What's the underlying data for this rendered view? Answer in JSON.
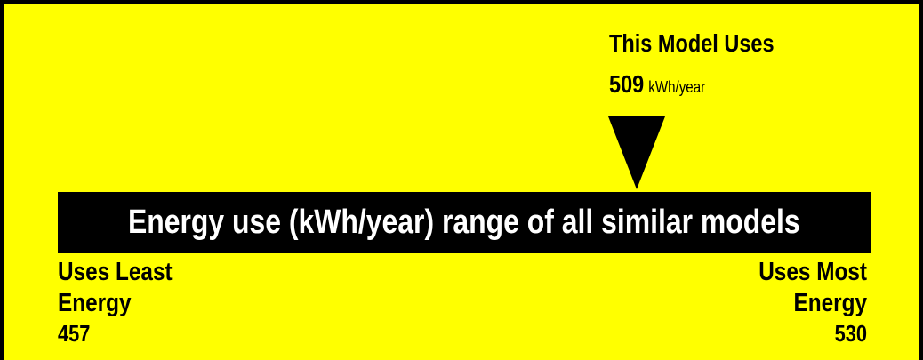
{
  "label": {
    "model_heading": "This Model Uses",
    "model_value": "509",
    "model_unit": "kWh/year",
    "marker_icon": "down-triangle-icon",
    "range_title": "Energy use (kWh/year) range of all similar models",
    "least": {
      "line1": "Uses Least",
      "line2": "Energy",
      "value": "457"
    },
    "most": {
      "line1": "Uses Most",
      "line2": "Energy",
      "value": "530"
    }
  },
  "colors": {
    "background": "#FFFF00",
    "bar": "#000000",
    "bar_text": "#FFFFFF",
    "text": "#000000"
  }
}
